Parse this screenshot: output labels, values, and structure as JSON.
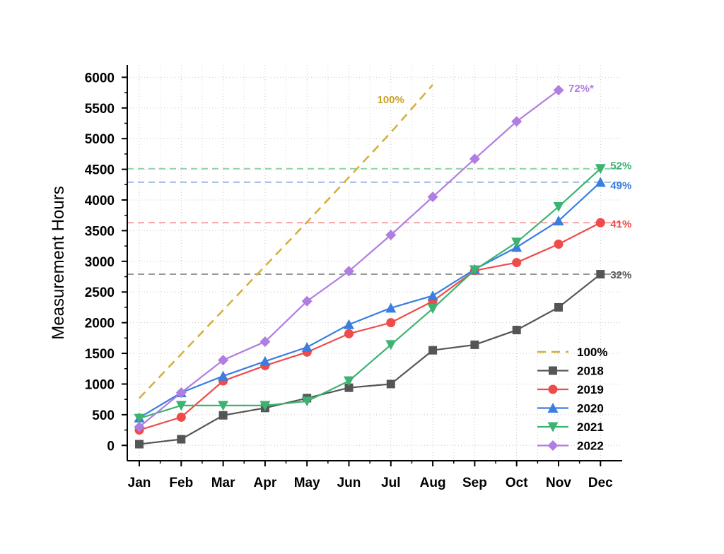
{
  "chart_data": {
    "type": "line",
    "title": "",
    "xlabel": "",
    "ylabel": "Measurement Hours",
    "categories": [
      "Jan",
      "Feb",
      "Mar",
      "Apr",
      "May",
      "Jun",
      "Jul",
      "Aug",
      "Sep",
      "Oct",
      "Nov",
      "Dec"
    ],
    "yticks": [
      0,
      500,
      1000,
      1500,
      2000,
      2500,
      3000,
      3500,
      4000,
      4500,
      5000,
      5500,
      6000
    ],
    "ylim": [
      -250,
      6200
    ],
    "grid": true,
    "legend_position": "bottom-right",
    "target_line": {
      "name": "100%",
      "color": "#d4af37",
      "x": [
        "Jan",
        "May",
        "Jul",
        "Aug"
      ],
      "values": [
        770,
        3640,
        5100,
        5880
      ]
    },
    "series": [
      {
        "name": "2018",
        "color": "#555555",
        "marker": "square",
        "values": [
          20,
          100,
          490,
          610,
          770,
          940,
          1000,
          1550,
          1640,
          1880,
          2250,
          2790
        ]
      },
      {
        "name": "2019",
        "color": "#f04b4b",
        "marker": "circle",
        "values": [
          250,
          460,
          1050,
          1300,
          1520,
          1820,
          2000,
          2350,
          2850,
          2980,
          3280,
          3630
        ]
      },
      {
        "name": "2020",
        "color": "#3a7ee0",
        "marker": "triangle-up",
        "values": [
          450,
          860,
          1130,
          1370,
          1600,
          1970,
          2240,
          2440,
          2870,
          3230,
          3660,
          4290
        ]
      },
      {
        "name": "2021",
        "color": "#3cb371",
        "marker": "triangle-down",
        "values": [
          440,
          650,
          650,
          650,
          720,
          1050,
          1640,
          2230,
          2860,
          3310,
          3890,
          4510
        ]
      },
      {
        "name": "2022",
        "color": "#b07ee0",
        "marker": "diamond",
        "values": [
          300,
          860,
          1390,
          1690,
          2350,
          2840,
          3430,
          4050,
          4670,
          5280,
          5790,
          null
        ]
      }
    ],
    "reference_lines": [
      {
        "value": 2790,
        "color": "#999999"
      },
      {
        "value": 3630,
        "color": "#f4a6a6"
      },
      {
        "value": 4290,
        "color": "#9fbde6"
      },
      {
        "value": 4510,
        "color": "#8fd3a8"
      }
    ],
    "annotations": [
      {
        "text": "100%",
        "color": "#c9a227",
        "x": "Jun",
        "y": 5650
      },
      {
        "text": "72%*",
        "color": "#b07ee0",
        "x": "Nov",
        "y": 5830
      },
      {
        "text": "52%",
        "color": "#3cb371",
        "x": "Dec",
        "y": 4570
      },
      {
        "text": "49%",
        "color": "#3a7ee0",
        "x": "Dec",
        "y": 4250
      },
      {
        "text": "41%",
        "color": "#f04b4b",
        "x": "Dec",
        "y": 3620
      },
      {
        "text": "32%",
        "color": "#555555",
        "x": "Dec",
        "y": 2790
      }
    ]
  }
}
